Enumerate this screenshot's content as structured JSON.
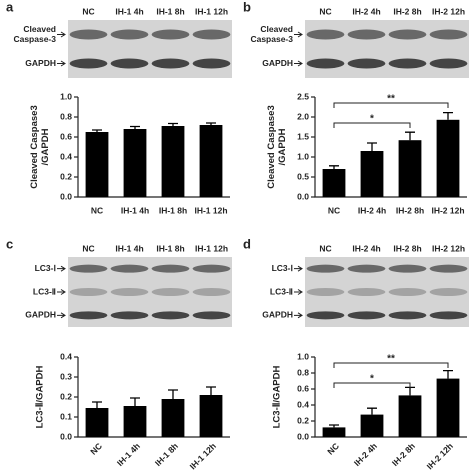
{
  "chart_data": [
    {
      "type": "bar",
      "panel": "a",
      "blot": {
        "lanes": [
          "NC",
          "IH-1 4h",
          "IH-1 8h",
          "IH-1 12h"
        ],
        "rows": [
          [
            "Cleaved",
            "Caspase-3"
          ],
          [
            "GAPDH"
          ]
        ]
      },
      "y_label": [
        "Cleaved Caspase3",
        "/GAPDH"
      ],
      "categories": [
        "NC",
        "IH-1 4h",
        "IH-1 8h",
        "IH-1 12h"
      ],
      "values": [
        0.65,
        0.68,
        0.71,
        0.72
      ],
      "errors": [
        0.02,
        0.025,
        0.025,
        0.02
      ],
      "color": "#000000",
      "ylim": [
        0,
        1
      ],
      "yticks": [
        {
          "value": 0,
          "label": "0.0"
        },
        0.2,
        0.4,
        0.6,
        0.8,
        {
          "value": 1,
          "label": "1.0"
        }
      ]
    },
    {
      "type": "bar",
      "panel": "b",
      "blot": {
        "lanes": [
          "NC",
          "IH-2 4h",
          "IH-2 8h",
          "IH-2 12h"
        ],
        "rows": [
          [
            "Cleaved",
            "Caspase-3"
          ],
          [
            "GAPDH"
          ]
        ]
      },
      "y_label": [
        "Cleaved Caspase3",
        "/GAPDH"
      ],
      "categories": [
        "NC",
        "IH-2 4h",
        "IH-2 8h",
        "IH-2 12h"
      ],
      "values": [
        0.7,
        1.15,
        1.42,
        1.93
      ],
      "errors": [
        0.08,
        0.2,
        0.2,
        0.18
      ],
      "color": "#000000",
      "ylim": [
        0,
        2.5
      ],
      "yticks": [
        {
          "value": 0,
          "label": "0.0"
        },
        0.5,
        {
          "value": 1,
          "label": "1.0"
        },
        1.5,
        {
          "value": 2,
          "label": "2.0"
        },
        2.5
      ],
      "significance": [
        {
          "between": [
            "NC",
            "IH-2 8h"
          ],
          "label": "*"
        },
        {
          "between": [
            "NC",
            "IH-2 12h"
          ],
          "label": "**"
        }
      ]
    },
    {
      "type": "bar",
      "panel": "c",
      "blot": {
        "lanes": [
          "NC",
          "IH-1 4h",
          "IH-1 8h",
          "IH-1 12h"
        ],
        "rows": [
          [
            "LC3-Ⅰ"
          ],
          [
            "LC3-Ⅱ"
          ],
          [
            "GAPDH"
          ]
        ]
      },
      "y_label": [
        "LC3-Ⅱ/GAPDH"
      ],
      "categories": [
        "NC",
        "IH-1 4h",
        "IH-1 8h",
        "IH-1 12h"
      ],
      "values": [
        0.145,
        0.155,
        0.19,
        0.21
      ],
      "errors": [
        0.03,
        0.04,
        0.045,
        0.04
      ],
      "color": "#000000",
      "x_tick_rotation": 45,
      "ylim": [
        0,
        0.4
      ],
      "yticks": [
        {
          "value": 0,
          "label": "0.0"
        },
        0.1,
        0.2,
        0.3,
        0.4
      ]
    },
    {
      "type": "bar",
      "panel": "d",
      "blot": {
        "lanes": [
          "NC",
          "IH-2 4h",
          "IH-2 8h",
          "IH-2 12h"
        ],
        "rows": [
          [
            "LC3-Ⅰ"
          ],
          [
            "LC3-Ⅱ"
          ],
          [
            "GAPDH"
          ]
        ]
      },
      "y_label": [
        "LC3-Ⅱ/GAPDH"
      ],
      "categories": [
        "NC",
        "IH-2 4h",
        "IH-2 8h",
        "IH-2 12h"
      ],
      "values": [
        0.12,
        0.28,
        0.52,
        0.73
      ],
      "errors": [
        0.03,
        0.08,
        0.1,
        0.1
      ],
      "color": "#000000",
      "x_tick_rotation": 45,
      "ylim": [
        0,
        1
      ],
      "yticks": [
        {
          "value": 0,
          "label": "0.0"
        },
        0.2,
        0.4,
        0.6,
        0.8,
        {
          "value": 1,
          "label": "1.0"
        }
      ],
      "significance": [
        {
          "between": [
            "NC",
            "IH-2 8h"
          ],
          "label": "*"
        },
        {
          "between": [
            "NC",
            "IH-2 12h"
          ],
          "label": "**"
        }
      ]
    }
  ]
}
